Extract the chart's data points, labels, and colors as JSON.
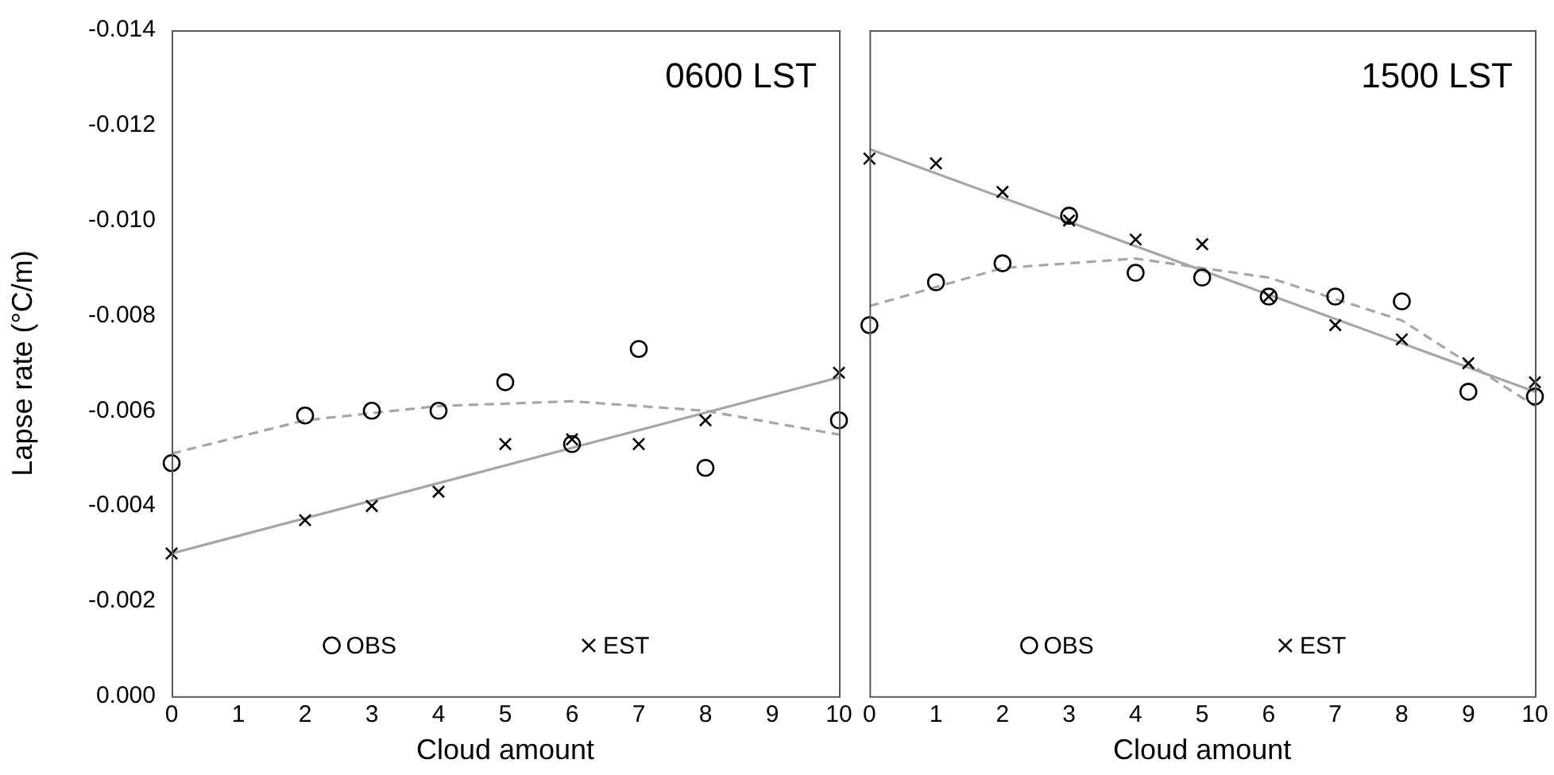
{
  "chart_data": [
    {
      "type": "scatter",
      "annotations": [
        "0600 LST"
      ],
      "xlabel": "Cloud amount",
      "ylabel": "Lapse rate (°C/m)",
      "xlim": [
        0,
        10
      ],
      "xticks": [
        0,
        1,
        2,
        3,
        4,
        5,
        6,
        7,
        8,
        9,
        10
      ],
      "ylim": [
        0,
        -0.014
      ],
      "yticks": [
        {
          "value": 0,
          "label": "0.000"
        },
        -0.002,
        -0.004,
        -0.006,
        -0.008,
        {
          "value": -0.01,
          "label": "-0.010"
        },
        -0.012,
        -0.014
      ],
      "grid": false,
      "legend": "bottom",
      "series": [
        {
          "name": "OBS",
          "color": "#000000",
          "marker": "circle",
          "x": [
            0,
            2,
            3,
            4,
            5,
            6,
            7,
            8,
            10
          ],
          "values": [
            -0.0049,
            -0.0059,
            -0.006,
            -0.006,
            -0.0066,
            -0.0053,
            -0.0073,
            -0.0048,
            -0.0058
          ]
        },
        {
          "name": "EST",
          "color": "#000000",
          "marker": "cross",
          "x": [
            0,
            2,
            3,
            4,
            5,
            6,
            7,
            8,
            10
          ],
          "values": [
            -0.003,
            -0.0037,
            -0.004,
            -0.0043,
            -0.0053,
            -0.0054,
            -0.0053,
            -0.0058,
            -0.0068
          ]
        },
        {
          "type": "line",
          "color": "#a6a6a6",
          "marker": "none",
          "line_style": "dashed",
          "x": [
            0,
            2,
            4,
            6,
            8,
            10
          ],
          "values": [
            -0.0051,
            -0.0058,
            -0.0061,
            -0.0062,
            -0.006,
            -0.0055
          ]
        },
        {
          "type": "line",
          "color": "#a6a6a6",
          "marker": "none",
          "line_style": "solid",
          "x": [
            0,
            10
          ],
          "values": [
            -0.003,
            -0.0067
          ]
        }
      ]
    },
    {
      "type": "scatter",
      "annotations": [
        "1500 LST"
      ],
      "xlabel": "Cloud amount",
      "xlim": [
        0,
        10
      ],
      "xticks": [
        0,
        1,
        2,
        3,
        4,
        5,
        6,
        7,
        8,
        9,
        10
      ],
      "ylim": [
        0,
        -0.014
      ],
      "tick_labels": "x",
      "grid": false,
      "legend": "bottom",
      "series": [
        {
          "name": "OBS",
          "color": "#000000",
          "marker": "circle",
          "x": [
            0,
            1,
            2,
            3,
            4,
            5,
            6,
            7,
            8,
            9,
            10
          ],
          "values": [
            -0.0078,
            -0.0087,
            -0.0091,
            -0.0101,
            -0.0089,
            -0.0088,
            -0.0084,
            -0.0084,
            -0.0083,
            -0.0064,
            -0.0063
          ]
        },
        {
          "name": "EST",
          "color": "#000000",
          "marker": "cross",
          "x": [
            0,
            1,
            2,
            3,
            4,
            5,
            6,
            7,
            8,
            9,
            10
          ],
          "values": [
            -0.0113,
            -0.0112,
            -0.0106,
            -0.01,
            -0.0096,
            -0.0095,
            -0.0084,
            -0.0078,
            -0.0075,
            -0.007,
            -0.0066
          ]
        },
        {
          "type": "line",
          "color": "#a6a6a6",
          "marker": "none",
          "line_style": "dashed",
          "x": [
            0,
            2,
            4,
            6,
            8,
            10
          ],
          "values": [
            -0.0082,
            -0.009,
            -0.0092,
            -0.0088,
            -0.0079,
            -0.0061
          ]
        },
        {
          "type": "line",
          "color": "#a6a6a6",
          "marker": "none",
          "line_style": "solid",
          "x": [
            0,
            10
          ],
          "values": [
            -0.0115,
            -0.0064
          ]
        }
      ]
    }
  ]
}
